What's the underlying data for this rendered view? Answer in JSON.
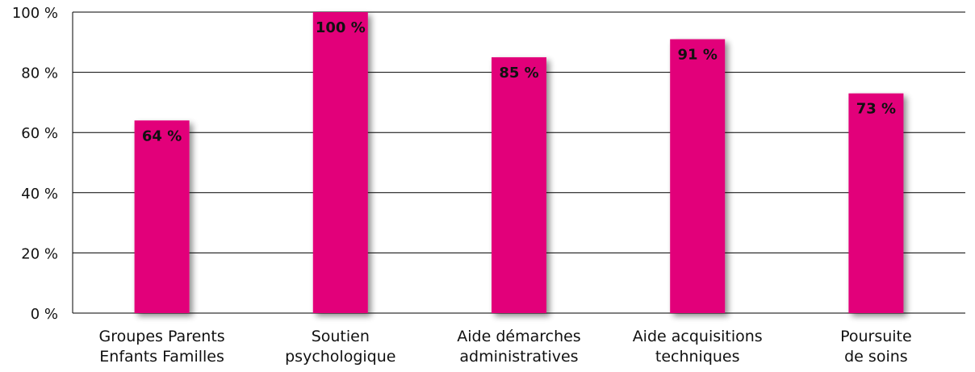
{
  "chart_data": {
    "type": "bar",
    "categories": [
      [
        "Groupes Parents",
        "Enfants Familles"
      ],
      [
        "Soutien",
        "psychologique"
      ],
      [
        "Aide démarches",
        "administratives"
      ],
      [
        "Aide acquisitions",
        "techniques"
      ],
      [
        "Poursuite",
        "de soins"
      ]
    ],
    "values": [
      64,
      100,
      85,
      91,
      73
    ],
    "data_labels": [
      "64 %",
      "100 %",
      "85 %",
      "91 %",
      "73 %"
    ],
    "ylim": [
      0,
      100
    ],
    "yticks": [
      0,
      20,
      40,
      60,
      80,
      100
    ],
    "ytick_labels": [
      "0 %",
      "20 %",
      "40 %",
      "60 %",
      "80 %",
      "100 %"
    ],
    "grid": true,
    "legend": "none",
    "bar_color": "#e2007a",
    "grid_color": "#000000"
  }
}
